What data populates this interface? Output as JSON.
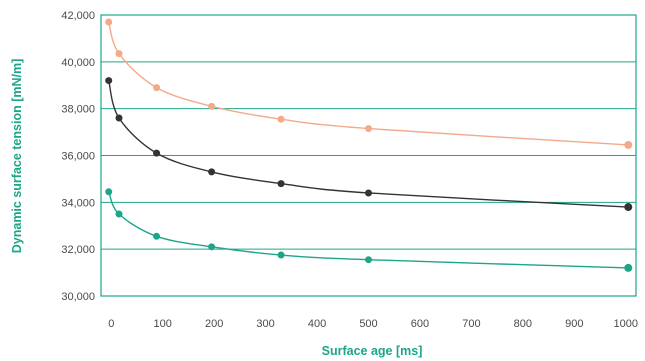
{
  "chart_data": {
    "type": "line",
    "xlabel": "Surface age [ms]",
    "ylabel": "Dynamic surface tension [mN/m]",
    "xlim": [
      -20,
      1020
    ],
    "ylim": [
      30000,
      42000
    ],
    "x_ticks": [
      0,
      100,
      200,
      300,
      400,
      500,
      600,
      700,
      800,
      900,
      1000
    ],
    "y_ticks": [
      30000,
      32000,
      34000,
      36000,
      38000,
      40000,
      42000
    ],
    "x_tick_labels": [
      "0",
      "100",
      "200",
      "300",
      "400",
      "500",
      "600",
      "700",
      "800",
      "900",
      "1000"
    ],
    "y_tick_labels": [
      "30,000",
      "32,000",
      "34,000",
      "36,000",
      "38,000",
      "40,000",
      "42,000"
    ],
    "grid": {
      "horizontal": true,
      "vertical": false
    },
    "legend": "none",
    "colors": {
      "frame": "#1ba68a",
      "grid": "#1ba68a",
      "axis_title": "#1ba68a",
      "tick_text": "#4a4a4a"
    },
    "series": [
      {
        "color": "#f4a98b",
        "x": [
          -5,
          15,
          88,
          195,
          330,
          500,
          1005
        ],
        "y": [
          41700,
          40350,
          38900,
          38100,
          37550,
          37150,
          36450
        ]
      },
      {
        "color": "#333333",
        "x": [
          -5,
          15,
          88,
          195,
          330,
          500,
          1005
        ],
        "y": [
          39200,
          37600,
          36100,
          35300,
          34800,
          34400,
          33800
        ]
      },
      {
        "color": "#1ba68a",
        "x": [
          -5,
          15,
          88,
          195,
          330,
          500,
          1005
        ],
        "y": [
          34450,
          33500,
          32550,
          32100,
          31750,
          31550,
          31200
        ]
      }
    ]
  }
}
